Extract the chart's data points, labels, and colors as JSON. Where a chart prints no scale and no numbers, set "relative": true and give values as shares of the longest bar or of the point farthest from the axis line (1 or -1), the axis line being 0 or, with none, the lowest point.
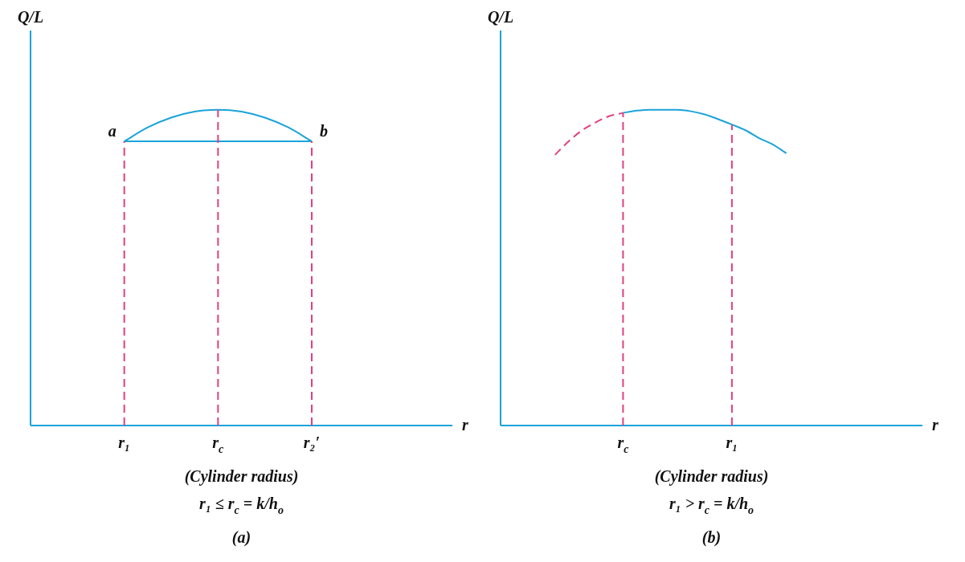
{
  "chart_data": [
    {
      "type": "line",
      "title": "(a)",
      "xlabel": "r",
      "ylabel": "Q/L",
      "relative": true,
      "grid": false,
      "legend": false,
      "marker": "none",
      "categories": [
        null,
        null,
        null,
        null,
        "r₁",
        null,
        null,
        null,
        "r$_{c}$",
        null,
        null,
        null,
        "r₂′",
        null,
        null,
        null,
        null,
        null,
        null
      ],
      "series": [
        {
          "color": "#1aa3d9",
          "line_style": "solid",
          "values": [
            null,
            null,
            null,
            null,
            0.9,
            0.944,
            0.975,
            0.994,
            1,
            0.994,
            0.975,
            0.944,
            0.9,
            null,
            null,
            null,
            null,
            null,
            null
          ]
        }
      ],
      "ref_lines": [
        {
          "axis": "y",
          "value": 0.9,
          "color": "#1aa3d9",
          "line_style": "solid"
        },
        {
          "axis": "x",
          "value": "r₁",
          "color": "#e0407f",
          "line_style": "dashed"
        },
        {
          "axis": "x",
          "value": "r$_{c}$",
          "color": "#e0407f",
          "line_style": "dashed"
        },
        {
          "axis": "x",
          "value": "r₂′",
          "color": "#e0407f",
          "line_style": "dashed"
        }
      ],
      "annotations": [
        {
          "text": "a",
          "x": "r₁",
          "y": 0.9
        },
        {
          "text": "b",
          "x": "r₂′",
          "y": 0.9
        },
        "(Cylinder radius)",
        "r₁ ≤ r$_{c}$ = k/h$_{o}$"
      ]
    },
    {
      "type": "line",
      "title": "(b)",
      "xlabel": "r",
      "ylabel": "Q/L",
      "relative": true,
      "grid": false,
      "legend": false,
      "marker": "none",
      "categories": [
        null,
        null,
        null,
        null,
        null,
        null,
        null,
        null,
        null,
        "r$_{c}$",
        null,
        null,
        null,
        null,
        null,
        null,
        null,
        "r₁",
        null,
        null,
        null,
        null,
        null,
        null,
        null,
        null,
        null,
        null,
        null,
        null,
        null,
        null
      ],
      "series": [
        {
          "color": "#e0407f",
          "line_style": "dashed",
          "values": [
            null,
            null,
            null,
            null,
            0.857,
            0.9,
            0.935,
            0.96,
            0.98,
            0.99,
            null,
            null,
            null,
            null,
            null,
            null,
            null,
            null,
            null,
            null,
            null,
            null,
            null,
            null,
            null,
            null,
            null,
            null,
            null,
            null,
            null,
            null
          ]
        },
        {
          "color": "#1aa3d9",
          "line_style": "solid",
          "values": [
            null,
            null,
            null,
            null,
            null,
            null,
            null,
            null,
            null,
            0.99,
            0.997,
            1,
            1,
            1,
            0.995,
            0.985,
            0.97,
            0.953,
            0.935,
            0.91,
            0.89,
            0.862,
            null,
            null,
            null,
            null,
            null,
            null,
            null,
            null,
            null,
            null
          ]
        }
      ],
      "ref_lines": [
        {
          "axis": "x",
          "value": "r$_{c}$",
          "color": "#e0407f",
          "line_style": "dashed"
        },
        {
          "axis": "x",
          "value": "r₁",
          "color": "#e0407f",
          "line_style": "dashed"
        }
      ],
      "annotations": [
        "(Cylinder radius)",
        "r₁ > r$_{c}$ = k/h$_{o}$"
      ]
    }
  ]
}
